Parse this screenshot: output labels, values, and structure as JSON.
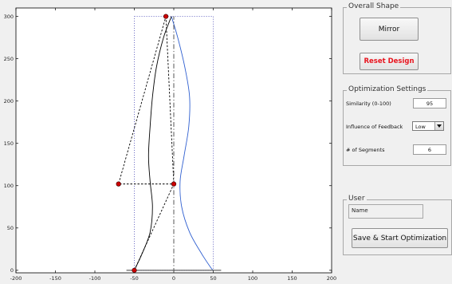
{
  "chart_data": {
    "type": "line",
    "xlim": [
      -200,
      200
    ],
    "ylim": [
      -3,
      310
    ],
    "x_ticks": [
      -200,
      -150,
      -100,
      -50,
      0,
      50,
      100,
      150,
      200
    ],
    "y_ticks": [
      0,
      50,
      100,
      150,
      200,
      250,
      300
    ],
    "grid": false,
    "series": [
      {
        "role": "right-profile-curve",
        "color": "#2f5fd0",
        "style": "solid",
        "points": [
          [
            -3,
            300
          ],
          [
            5,
            275
          ],
          [
            14,
            240
          ],
          [
            20,
            205
          ],
          [
            19,
            170
          ],
          [
            13,
            135
          ],
          [
            8,
            105
          ],
          [
            10,
            75
          ],
          [
            20,
            45
          ],
          [
            35,
            20
          ],
          [
            47,
            3
          ],
          [
            50,
            0
          ]
        ]
      },
      {
        "role": "left-profile-curve",
        "color": "#000000",
        "style": "solid",
        "points": [
          [
            -50,
            0
          ],
          [
            -40,
            20
          ],
          [
            -30,
            45
          ],
          [
            -27,
            75
          ],
          [
            -30,
            105
          ],
          [
            -32,
            135
          ],
          [
            -30,
            170
          ],
          [
            -27,
            205
          ],
          [
            -22,
            240
          ],
          [
            -13,
            275
          ],
          [
            -3,
            300
          ]
        ]
      },
      {
        "role": "control-polygon",
        "color": "#000000",
        "style": "dashed",
        "points": [
          [
            -50,
            0
          ],
          [
            0,
            102
          ],
          [
            -70,
            102
          ],
          [
            -10,
            300
          ]
        ]
      },
      {
        "role": "control-polygon-inner",
        "color": "#000000",
        "style": "dashed",
        "points": [
          [
            -10,
            300
          ],
          [
            0,
            102
          ]
        ]
      },
      {
        "role": "centerline",
        "color": "#444444",
        "style": "dash-dot",
        "points": [
          [
            0,
            -3
          ],
          [
            0,
            300
          ]
        ]
      },
      {
        "role": "baseline",
        "color": "#555555",
        "style": "solid",
        "points": [
          [
            -60,
            0
          ],
          [
            60,
            0
          ]
        ]
      }
    ],
    "bounding_box": {
      "x": [
        -50,
        50
      ],
      "y": [
        0,
        300
      ],
      "color": "#5555bb",
      "style": "dotted"
    },
    "control_points": [
      [
        -50,
        0
      ],
      [
        0,
        102
      ],
      [
        -70,
        102
      ],
      [
        -10,
        300
      ]
    ],
    "control_point_color": "#cc0000"
  },
  "panels": {
    "overall_shape": {
      "title": "Overall Shape",
      "mirror_label": "Mirror",
      "reset_label": "Reset Design",
      "reset_color": "#e8141e"
    },
    "optimization": {
      "title": "Optimization Settings",
      "similarity_label": "Similarity (0-100)",
      "similarity_value": "95",
      "feedback_label": "Influence of Feedback",
      "feedback_value": "Low",
      "segments_label": "# of Segments",
      "segments_value": "6"
    },
    "user": {
      "title": "User",
      "name_placeholder": "Name",
      "save_label": "Save & Start Optimization"
    }
  }
}
